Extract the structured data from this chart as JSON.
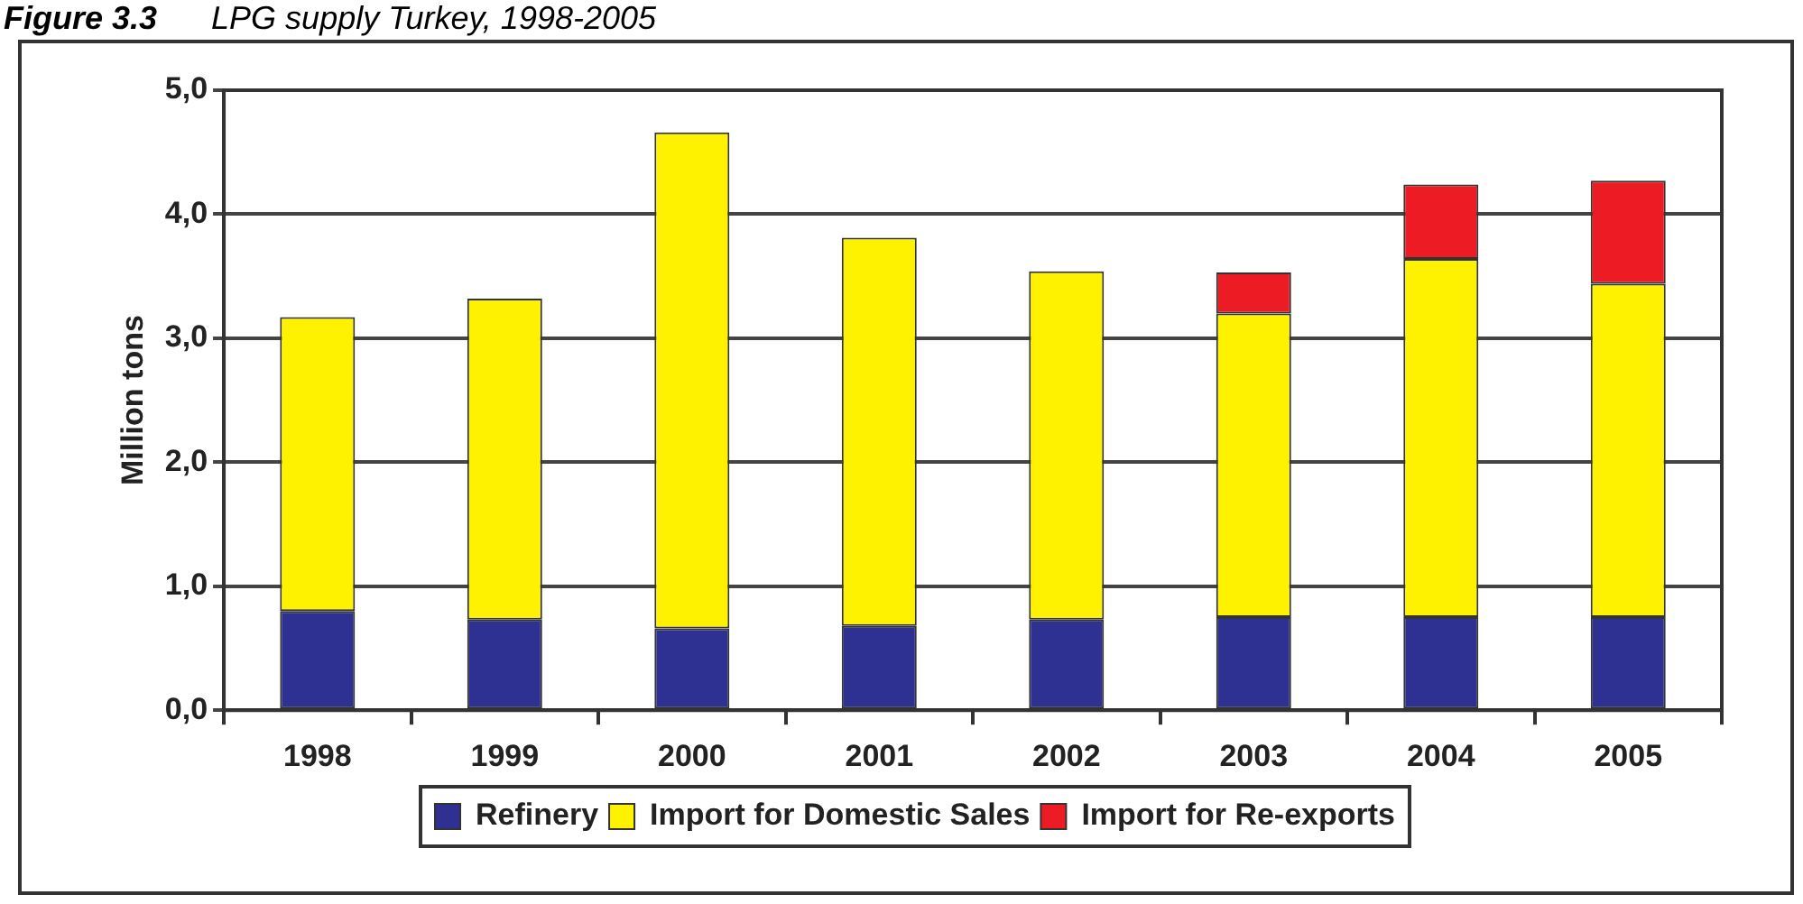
{
  "chart_data": {
    "type": "bar",
    "title": "Figure 3.3\tLPG supply Turkey, 1998-2005",
    "ylabel": "Million tons",
    "categories": [
      "1998",
      "1999",
      "2000",
      "2001",
      "2002",
      "2003",
      "2004",
      "2005"
    ],
    "stacked": true,
    "series": [
      {
        "name": "Refinery",
        "color": "#2e3192",
        "values": [
          0.8,
          0.73,
          0.66,
          0.68,
          0.73,
          0.75,
          0.75,
          0.75
        ]
      },
      {
        "name": "Import for Domestic Sales",
        "color": "#fff200",
        "values": [
          2.37,
          2.59,
          4.0,
          3.13,
          2.81,
          2.45,
          2.89,
          2.69
        ]
      },
      {
        "name": "Import for Re-exports",
        "color": "#ed1c24",
        "values": [
          null,
          null,
          null,
          null,
          null,
          0.33,
          0.6,
          0.83
        ]
      }
    ],
    "ylim": [
      0,
      5
    ],
    "yticks": [
      {
        "value": 0,
        "label": "0,0"
      },
      {
        "value": 1,
        "label": "1,0"
      },
      {
        "value": 2,
        "label": "2,0"
      },
      {
        "value": 3,
        "label": "3,0"
      },
      {
        "value": 4,
        "label": "4,0"
      },
      {
        "value": 5,
        "label": "5,0"
      }
    ],
    "grid": "y",
    "legend": "bottom"
  }
}
